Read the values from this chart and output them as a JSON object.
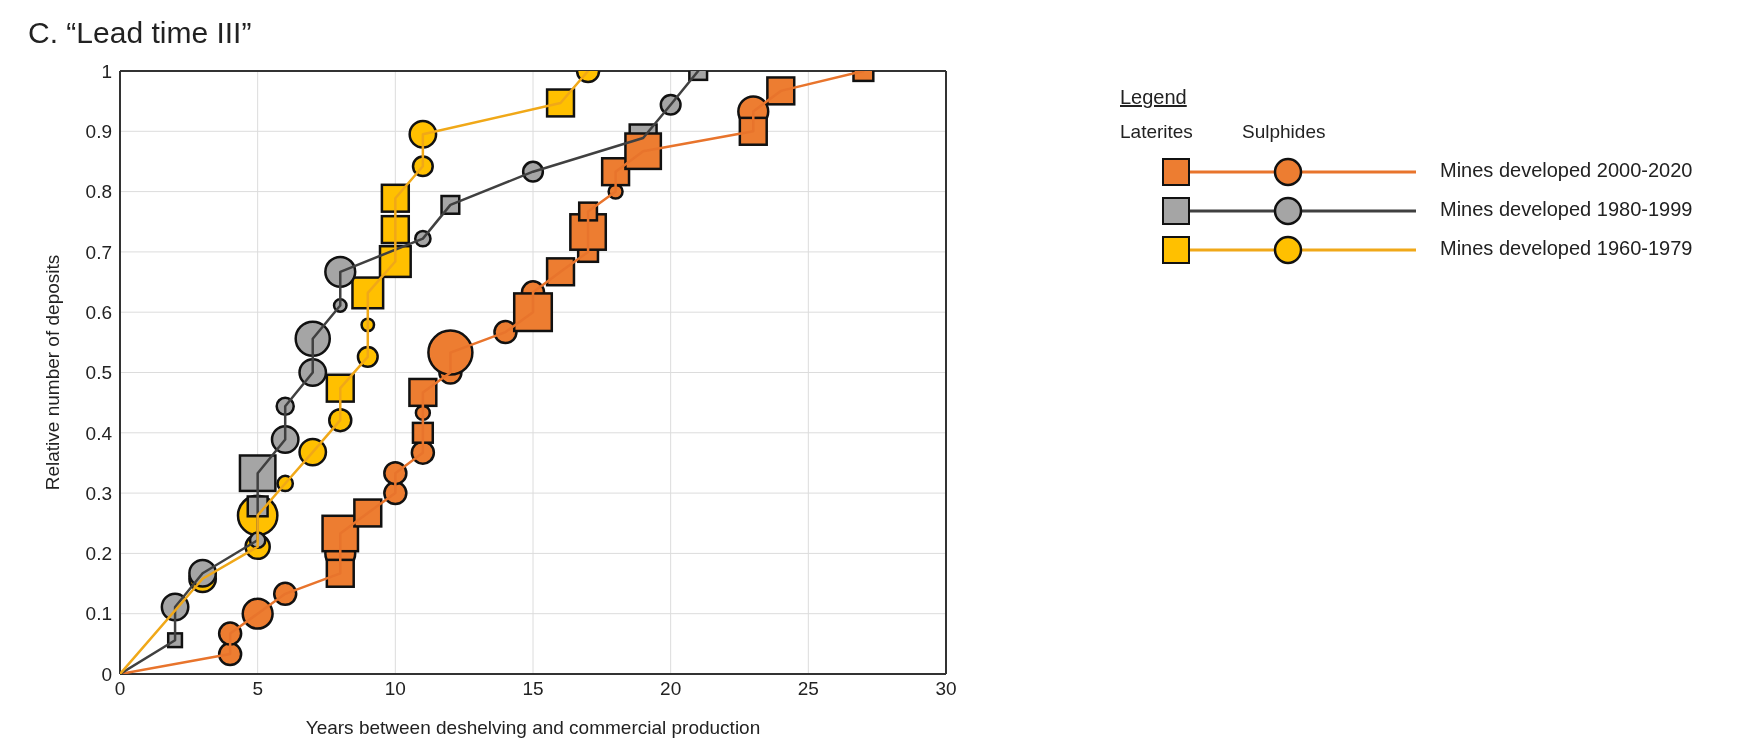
{
  "chart_data": {
    "type": "line",
    "title": "C. “Lead time III”",
    "xlabel": "Years between deshelving and commercial production",
    "ylabel": "Relative number of deposits",
    "legend_title": "Legend",
    "annotations": [
      "Laterites",
      "Sulphides"
    ],
    "xlim": [
      0,
      30
    ],
    "xticks": [
      0,
      5,
      10,
      15,
      20,
      25,
      30
    ],
    "ylim": [
      0,
      1
    ],
    "yticks": [
      0,
      0.1,
      0.2,
      0.3,
      0.4,
      0.5,
      0.6,
      0.7,
      0.8,
      0.9,
      1
    ],
    "grid": true,
    "legend": "top right",
    "marker": "none",
    "line_style": "solid",
    "series": [
      {
        "name": "Mines developed 2000-2020",
        "color": "#e8742c",
        "x": [
          0,
          4,
          4,
          5,
          6,
          8,
          8,
          8,
          9,
          10,
          10,
          11,
          11,
          11,
          11,
          12,
          12,
          14,
          15,
          15,
          16,
          17,
          17,
          17,
          18,
          18,
          19,
          23,
          23,
          24,
          27
        ],
        "values": [
          0,
          0.033,
          0.067,
          0.1,
          0.133,
          0.167,
          0.2,
          0.233,
          0.267,
          0.3,
          0.333,
          0.367,
          0.4,
          0.433,
          0.467,
          0.5,
          0.533,
          0.567,
          0.6,
          0.633,
          0.667,
          0.7,
          0.733,
          0.767,
          0.8,
          0.833,
          0.867,
          0.9,
          0.933,
          0.967,
          1
        ]
      },
      {
        "name": "Mines developed 1980-1999",
        "color": "#404040",
        "x": [
          0,
          2,
          2,
          3,
          5,
          5,
          5,
          6,
          6,
          7,
          7,
          8,
          8,
          11,
          12,
          15,
          19,
          20,
          21
        ],
        "values": [
          0,
          0.056,
          0.111,
          0.167,
          0.222,
          0.278,
          0.333,
          0.389,
          0.444,
          0.5,
          0.556,
          0.611,
          0.667,
          0.722,
          0.778,
          0.833,
          0.889,
          0.944,
          1
        ]
      },
      {
        "name": "Mines developed 1960-1979",
        "color": "#f0a818",
        "x": [
          0,
          3,
          5,
          5,
          6,
          7,
          8,
          8,
          9,
          9,
          9,
          10,
          10,
          10,
          11,
          11,
          16,
          17
        ],
        "values": [
          0,
          0.158,
          0.211,
          0.263,
          0.316,
          0.368,
          0.421,
          0.474,
          0.526,
          0.579,
          0.632,
          0.684,
          0.737,
          0.789,
          0.842,
          0.895,
          0.947,
          1
        ]
      },
      {
        "type": "bubble",
        "marker": "square",
        "color": "#ed7d31",
        "x": [
          8,
          8,
          9,
          11,
          11,
          15,
          16,
          17,
          17,
          17,
          18,
          19,
          23,
          24,
          27
        ],
        "values": [
          0.167,
          0.233,
          0.267,
          0.4,
          0.467,
          0.6,
          0.667,
          0.7,
          0.733,
          0.767,
          0.833,
          0.867,
          0.9,
          0.967,
          1
        ],
        "sizes": [
          0.46,
          0.8,
          0.46,
          0.25,
          0.46,
          0.9,
          0.46,
          0.25,
          0.8,
          0.2,
          0.46,
          0.8,
          0.46,
          0.46,
          0.25
        ]
      },
      {
        "type": "bubble",
        "marker": "circle",
        "color": "#ed7d31",
        "x": [
          4,
          4,
          5,
          6,
          8,
          10,
          10,
          11,
          11,
          12,
          12,
          14,
          15,
          18,
          23
        ],
        "values": [
          0.033,
          0.067,
          0.1,
          0.133,
          0.2,
          0.3,
          0.333,
          0.367,
          0.433,
          0.5,
          0.533,
          0.567,
          0.633,
          0.8,
          0.933
        ],
        "sizes": [
          0.25,
          0.25,
          0.46,
          0.25,
          0.46,
          0.25,
          0.25,
          0.25,
          0.1,
          0.25,
          1,
          0.25,
          0.25,
          0.1,
          0.46
        ]
      },
      {
        "type": "bubble",
        "marker": "square",
        "color": "#a5a5a5",
        "x": [
          2,
          5,
          5,
          12,
          19,
          21
        ],
        "values": [
          0.056,
          0.278,
          0.333,
          0.778,
          0.889,
          1
        ],
        "sizes": [
          0.12,
          0.25,
          0.8,
          0.2,
          0.46,
          0.2
        ]
      },
      {
        "type": "bubble",
        "marker": "circle",
        "color": "#a5a5a5",
        "x": [
          2,
          3,
          5,
          6,
          6,
          7,
          7,
          8,
          8,
          11,
          15,
          20
        ],
        "values": [
          0.111,
          0.167,
          0.222,
          0.389,
          0.444,
          0.5,
          0.556,
          0.611,
          0.667,
          0.722,
          0.833,
          0.944
        ],
        "sizes": [
          0.36,
          0.36,
          0.12,
          0.36,
          0.15,
          0.36,
          0.6,
          0.08,
          0.46,
          0.12,
          0.2,
          0.2
        ]
      },
      {
        "type": "bubble",
        "marker": "square",
        "color": "#ffc000",
        "x": [
          8,
          9,
          10,
          10,
          10,
          16
        ],
        "values": [
          0.474,
          0.632,
          0.684,
          0.737,
          0.789,
          0.947
        ],
        "sizes": [
          0.46,
          0.6,
          0.6,
          0.46,
          0.46,
          0.46
        ]
      },
      {
        "type": "bubble",
        "marker": "circle",
        "color": "#ffc000",
        "x": [
          3,
          5,
          5,
          6,
          7,
          8,
          9,
          9,
          11,
          11,
          17
        ],
        "values": [
          0.158,
          0.211,
          0.263,
          0.316,
          0.368,
          0.421,
          0.526,
          0.579,
          0.842,
          0.895,
          1
        ],
        "sizes": [
          0.36,
          0.3,
          0.8,
          0.12,
          0.36,
          0.25,
          0.2,
          0.08,
          0.2,
          0.36,
          0.25
        ]
      }
    ]
  }
}
